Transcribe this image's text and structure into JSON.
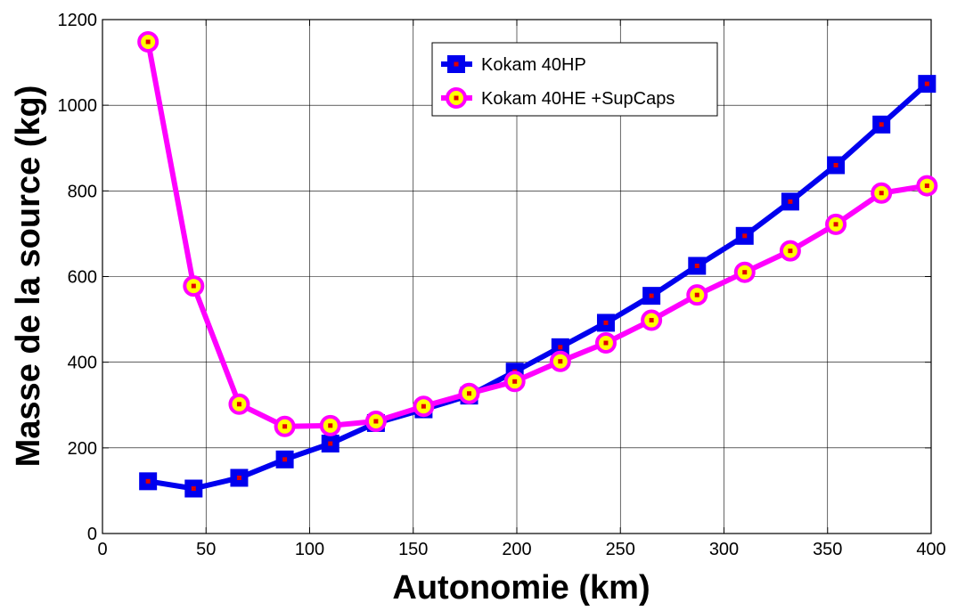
{
  "chart_data": {
    "type": "line",
    "xlabel": "Autonomie  (km)",
    "ylabel": "Masse de la source (kg)",
    "xlim": [
      0,
      400
    ],
    "ylim": [
      0,
      1200
    ],
    "xticks": [
      0,
      50,
      100,
      150,
      200,
      250,
      300,
      350,
      400
    ],
    "yticks": [
      0,
      200,
      400,
      600,
      800,
      1000,
      1200
    ],
    "grid": true,
    "legend_position": "top-center",
    "series": [
      {
        "name": "Kokam 40HP",
        "color": "#0000ee",
        "marker": "square",
        "marker_face": "#0000ee",
        "marker_center": "#e00000",
        "x": [
          22,
          44,
          66,
          88,
          110,
          132,
          155,
          177,
          199,
          221,
          243,
          265,
          287,
          310,
          332,
          354,
          376,
          398
        ],
        "y": [
          122,
          105,
          130,
          173,
          210,
          258,
          290,
          322,
          378,
          435,
          492,
          555,
          625,
          695,
          775,
          860,
          955,
          1050
        ]
      },
      {
        "name": "Kokam 40HE +SupCaps",
        "color": "#ff00ff",
        "marker": "circle",
        "marker_face": "#ffff00",
        "marker_center": "#e00000",
        "x": [
          22,
          44,
          66,
          88,
          110,
          132,
          155,
          177,
          199,
          221,
          243,
          265,
          287,
          310,
          332,
          354,
          376,
          398
        ],
        "y": [
          1148,
          578,
          302,
          250,
          252,
          262,
          297,
          327,
          355,
          402,
          445,
          498,
          557,
          610,
          660,
          722,
          795,
          812
        ]
      }
    ]
  }
}
